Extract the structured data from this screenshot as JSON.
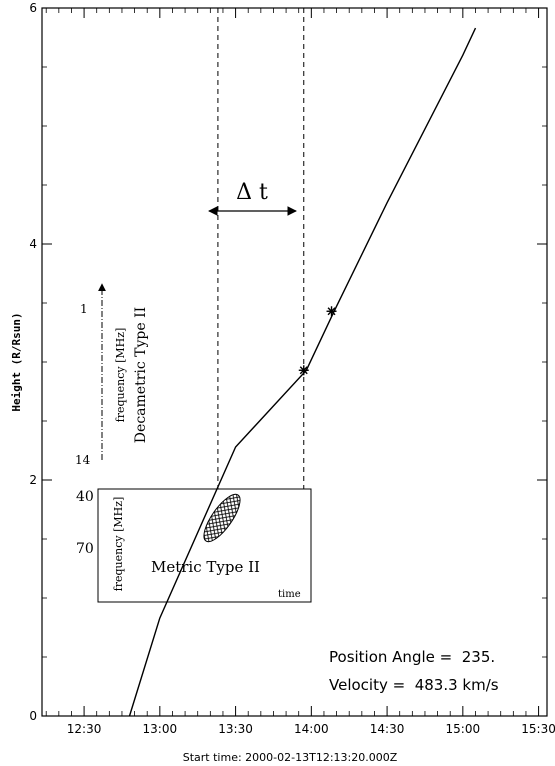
{
  "chart_data": {
    "type": "line",
    "xlabel": "Start time: 2000-02-13T12:13:20.000Z",
    "ylabel": "Height (R/Rsun)",
    "x_ticks": [
      "12:30",
      "13:00",
      "13:30",
      "14:00",
      "14:30",
      "15:00",
      "15:30"
    ],
    "y_ticks": [
      "0",
      "2",
      "4",
      "6"
    ],
    "xlim": [
      "12:13:20",
      "15:33:20"
    ],
    "ylim": [
      0,
      6
    ],
    "grid": false,
    "series": [
      {
        "style": "solid",
        "x": [
          "12:48",
          "13:00",
          "13:30",
          "13:58",
          "14:09",
          "14:30",
          "15:00",
          "15:05"
        ],
        "y": [
          0.0,
          0.83,
          2.28,
          2.93,
          3.43,
          4.35,
          5.6,
          5.83
        ]
      }
    ],
    "markers": [
      {
        "symbol": "asterisk",
        "x": "13:57",
        "y": 2.93
      },
      {
        "symbol": "asterisk",
        "x": "14:08",
        "y": 3.43
      }
    ],
    "dashed_lines": [
      "13:23",
      "13:57"
    ],
    "delta_t_label": "Δ t",
    "annotations": {
      "decametric_freq_label": "frequency [MHz]",
      "decametric_title": "Decametric Type II",
      "decametric_ticks": [
        "1",
        "14"
      ],
      "metric_freq_ticks": [
        "40",
        "70"
      ],
      "metric_freq_label": "frequency [MHz]",
      "metric_title": "Metric Type II",
      "metric_time_label": "time"
    },
    "info": {
      "position_angle": "Position Angle =  235.",
      "velocity": "Velocity =  483.3 km/s"
    }
  }
}
